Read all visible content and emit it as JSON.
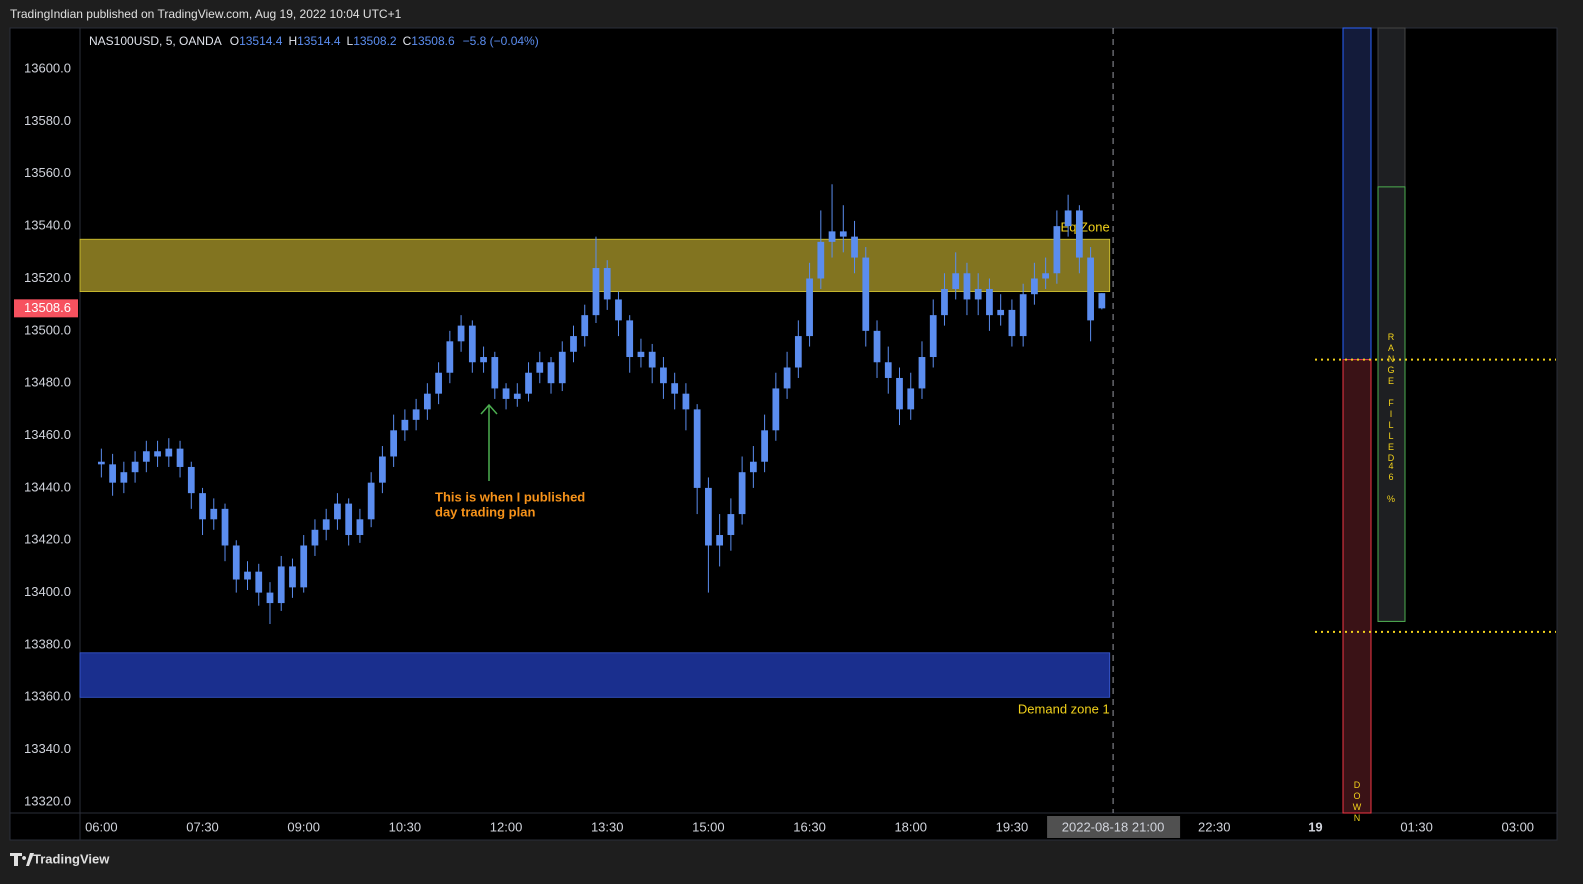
{
  "header": {
    "published": "TradingIndian published on TradingView.com, Aug 19, 2022 10:04 UTC+1"
  },
  "footer": {
    "brand": "TradingView"
  },
  "chart_data": {
    "type": "candlestick",
    "symbol": "NAS100USD, 5, OANDA",
    "ohlc_letters": [
      "O",
      "H",
      "L",
      "C"
    ],
    "change": "−5.8 (−0.04%)",
    "color": "#5b8def",
    "x": [
      360,
      370,
      380,
      390,
      400,
      410,
      420,
      430,
      440,
      450,
      460,
      470,
      480,
      490,
      500,
      510,
      520,
      530,
      540,
      550,
      560,
      570,
      580,
      590,
      600,
      610,
      620,
      630,
      640,
      650,
      660,
      670,
      680,
      690,
      700,
      710,
      720,
      730,
      740,
      750,
      760,
      770,
      780,
      790,
      800,
      810,
      820,
      830,
      840,
      850,
      860,
      870,
      880,
      890,
      900,
      910,
      920,
      930,
      940,
      950,
      960,
      970,
      980,
      990,
      1000,
      1010,
      1020,
      1030,
      1040,
      1050,
      1060,
      1070,
      1080,
      1090,
      1100,
      1110,
      1120,
      1130,
      1140,
      1150,
      1160,
      1170,
      1180,
      1190,
      1200,
      1210,
      1220,
      1230,
      1240,
      1250
    ],
    "open": [
      13450,
      13449,
      13442,
      13446,
      13450,
      13454,
      13452,
      13455,
      13448,
      13438,
      13428,
      13432,
      13418,
      13405,
      13408,
      13400,
      13396,
      13410,
      13402,
      13418,
      13424,
      13428,
      13434,
      13422,
      13428,
      13442,
      13452,
      13462,
      13466,
      13470,
      13476,
      13484,
      13496,
      13502,
      13488,
      13490,
      13478,
      13474,
      13476,
      13484,
      13488,
      13480,
      13492,
      13498,
      13506,
      13524,
      13512,
      13504,
      13490,
      13492,
      13486,
      13480,
      13476,
      13470,
      13440,
      13418,
      13422,
      13430,
      13446,
      13450,
      13462,
      13478,
      13486,
      13498,
      13520,
      13534,
      13538,
      13536,
      13528,
      13500,
      13488,
      13482,
      13470,
      13478,
      13490,
      13506,
      13516,
      13522,
      13512,
      13516,
      13506,
      13508,
      13498,
      13514,
      13520,
      13522,
      13540,
      13546,
      13528,
      13514.4
    ],
    "high": [
      13455,
      13453,
      13450,
      13454,
      13458,
      13458,
      13459,
      13458,
      13450,
      13440,
      13436,
      13434,
      13420,
      13412,
      13411,
      13404,
      13414,
      13413,
      13422,
      13428,
      13432,
      13438,
      13436,
      13432,
      13446,
      13456,
      13468,
      13470,
      13474,
      13480,
      13488,
      13500,
      13506,
      13504,
      13494,
      13492,
      13480,
      13480,
      13488,
      13492,
      13490,
      13496,
      13502,
      13510,
      13536,
      13527,
      13515,
      13506,
      13497,
      13495,
      13490,
      13484,
      13480,
      13472,
      13444,
      13430,
      13436,
      13452,
      13456,
      13468,
      13484,
      13492,
      13504,
      13526,
      13546,
      13556,
      13548,
      13542,
      13532,
      13504,
      13494,
      13486,
      13484,
      13496,
      13512,
      13522,
      13530,
      13526,
      13522,
      13520,
      13514,
      13512,
      13518,
      13526,
      13528,
      13546,
      13552,
      13548,
      13532,
      13514.4
    ],
    "low": [
      13444,
      13437,
      13438,
      13442,
      13446,
      13448,
      13448,
      13444,
      13432,
      13422,
      13424,
      13412,
      13400,
      13401,
      13395,
      13388,
      13393,
      13398,
      13400,
      13414,
      13420,
      13424,
      13418,
      13419,
      13425,
      13438,
      13448,
      13458,
      13462,
      13466,
      13472,
      13480,
      13492,
      13484,
      13484,
      13474,
      13470,
      13471,
      13473,
      13480,
      13476,
      13477,
      13488,
      13494,
      13503,
      13508,
      13498,
      13484,
      13486,
      13480,
      13474,
      13470,
      13462,
      13430,
      13400,
      13410,
      13416,
      13426,
      13440,
      13446,
      13458,
      13474,
      13482,
      13494,
      13516,
      13528,
      13530,
      13522,
      13494,
      13482,
      13476,
      13464,
      13466,
      13474,
      13486,
      13502,
      13512,
      13506,
      13506,
      13500,
      13502,
      13494,
      13494,
      13510,
      13516,
      13518,
      13536,
      13522,
      13496,
      13508.2
    ],
    "close": [
      13449,
      13442,
      13446,
      13450,
      13454,
      13452,
      13455,
      13448,
      13438,
      13428,
      13432,
      13418,
      13405,
      13408,
      13400,
      13396,
      13410,
      13402,
      13418,
      13424,
      13428,
      13434,
      13422,
      13428,
      13442,
      13452,
      13462,
      13466,
      13470,
      13476,
      13484,
      13496,
      13502,
      13488,
      13490,
      13478,
      13474,
      13476,
      13484,
      13488,
      13480,
      13492,
      13498,
      13506,
      13524,
      13512,
      13504,
      13490,
      13492,
      13486,
      13480,
      13476,
      13470,
      13440,
      13418,
      13422,
      13430,
      13446,
      13450,
      13462,
      13478,
      13486,
      13498,
      13520,
      13534,
      13538,
      13536,
      13528,
      13500,
      13488,
      13482,
      13470,
      13478,
      13490,
      13506,
      13516,
      13522,
      13512,
      13516,
      13506,
      13508,
      13498,
      13514,
      13520,
      13522,
      13540,
      13546,
      13528,
      13504,
      13508.6
    ],
    "last_price_color": "#f7525f",
    "xlim": [
      341,
      1654
    ],
    "xticks": [
      {
        "value": 360,
        "label": "06:00"
      },
      {
        "value": 450,
        "label": "07:30"
      },
      {
        "value": 540,
        "label": "09:00"
      },
      {
        "value": 630,
        "label": "10:30"
      },
      {
        "value": 720,
        "label": "12:00"
      },
      {
        "value": 810,
        "label": "13:30"
      },
      {
        "value": 900,
        "label": "15:00"
      },
      {
        "value": 990,
        "label": "16:30"
      },
      {
        "value": 1080,
        "label": "18:00"
      },
      {
        "value": 1170,
        "label": "19:30"
      },
      {
        "value": 1350,
        "label": "22:30"
      },
      {
        "value": 1440,
        "label": "19"
      },
      {
        "value": 1530,
        "label": "01:30"
      },
      {
        "value": 1620,
        "label": "03:00"
      }
    ],
    "crosshair": {
      "value": 1260,
      "label": "2022-08-18 21:00"
    },
    "ylim": [
      13315.8,
      13615.7
    ],
    "yticks": [
      {
        "value": 13600,
        "label": "13600.0"
      },
      {
        "value": 13580,
        "label": "13580.0"
      },
      {
        "value": 13560,
        "label": "13560.0"
      },
      {
        "value": 13540,
        "label": "13540.0"
      },
      {
        "value": 13520,
        "label": "13520.0"
      },
      {
        "value": 13500,
        "label": "13500.0"
      },
      {
        "value": 13480,
        "label": "13480.0"
      },
      {
        "value": 13460,
        "label": "13460.0"
      },
      {
        "value": 13440,
        "label": "13440.0"
      },
      {
        "value": 13420,
        "label": "13420.0"
      },
      {
        "value": 13400,
        "label": "13400.0"
      },
      {
        "value": 13380,
        "label": "13380.0"
      },
      {
        "value": 13360,
        "label": "13360.0"
      },
      {
        "value": 13340,
        "label": "13340.0"
      },
      {
        "value": 13320,
        "label": "13320.0"
      }
    ],
    "zones": [
      {
        "name": "Eq Zone",
        "from": 13515,
        "to": 13535,
        "start": 341,
        "end": 1257,
        "color": "#827420"
      },
      {
        "name": "Demand zone 1",
        "from": 13360,
        "to": 13377,
        "start": 341,
        "end": 1257,
        "color": "#1a2f8e"
      }
    ],
    "annotations": [
      "This is when I published",
      "day trading plan"
    ],
    "levels": [
      13489,
      13385
    ],
    "range_indicator": {
      "box_top": 13555,
      "box_bottom": 13389,
      "label": "RANGE FILLED",
      "percent": "46 %",
      "down_label": "DOWN"
    }
  }
}
